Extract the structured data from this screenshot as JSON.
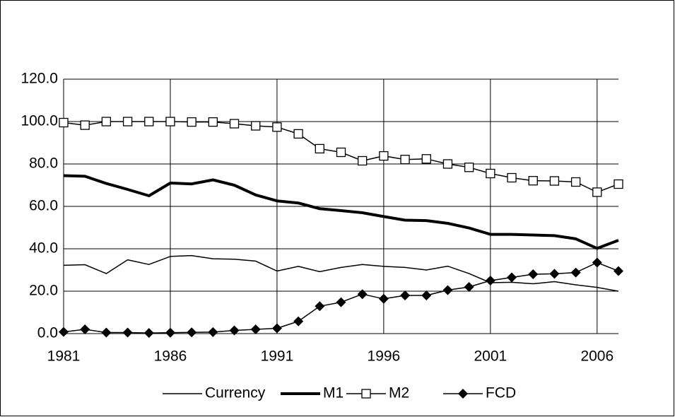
{
  "chart_data": {
    "type": "line",
    "x": [
      1981,
      1982,
      1983,
      1984,
      1985,
      1986,
      1987,
      1988,
      1989,
      1990,
      1991,
      1992,
      1993,
      1994,
      1995,
      1996,
      1997,
      1998,
      1999,
      2000,
      2001,
      2002,
      2003,
      2004,
      2005,
      2006,
      2007
    ],
    "xlim": [
      1981,
      2007
    ],
    "xticks": [
      1981,
      1986,
      1991,
      1996,
      2001,
      2006
    ],
    "ylim": [
      0,
      120
    ],
    "yticks": [
      {
        "value": 0,
        "label": "0.0"
      },
      {
        "value": 20,
        "label": "20.0"
      },
      {
        "value": 40,
        "label": "40.0"
      },
      {
        "value": 60,
        "label": "60.0"
      },
      {
        "value": 80,
        "label": "80.0"
      },
      {
        "value": 100,
        "label": "100.0"
      },
      {
        "value": 120,
        "label": "120.0"
      }
    ],
    "grid": true,
    "legend": "bottom",
    "series": [
      {
        "name": "Currency",
        "color": "#000000",
        "line_width": 1.5,
        "marker": "none",
        "values": [
          32.2,
          32.5,
          28.3,
          34.8,
          32.6,
          36.4,
          36.8,
          35.3,
          35.1,
          34.2,
          29.5,
          31.7,
          29.2,
          31.2,
          32.6,
          31.7,
          31.2,
          30,
          31.8,
          28.3,
          24,
          24.2,
          23.5,
          24.5,
          23,
          21.8,
          20
        ]
      },
      {
        "name": "M1",
        "color": "#000000",
        "line_width": 4,
        "marker": "none",
        "values": [
          74.5,
          74.2,
          70.8,
          68,
          65,
          71,
          70.6,
          72.5,
          70,
          65.4,
          62.6,
          61.6,
          58.9,
          58,
          57,
          55.2,
          53.5,
          53.3,
          52,
          49.8,
          46.8,
          46.8,
          46.5,
          46.2,
          44.7,
          40.2,
          44
        ]
      },
      {
        "name": "M2",
        "color": "#000000",
        "line_width": 1.5,
        "marker": "square-open",
        "values": [
          99.5,
          98.3,
          100,
          100,
          100,
          100,
          99.8,
          99.8,
          99,
          98,
          97.4,
          94.2,
          87.2,
          85.5,
          81.5,
          83.8,
          82.1,
          82.4,
          80,
          78.4,
          75.5,
          73.5,
          72.1,
          72,
          71.5,
          66.7,
          70.5
        ]
      },
      {
        "name": "FCD",
        "color": "#000000",
        "line_width": 1.5,
        "marker": "diamond",
        "values": [
          0.8,
          2,
          0.5,
          0.5,
          0.3,
          0.4,
          0.6,
          0.7,
          1.5,
          2,
          2.5,
          5.8,
          12.9,
          14.8,
          18.6,
          16.4,
          18,
          18,
          20.5,
          22,
          25,
          26.5,
          28,
          28.2,
          28.8,
          33.5,
          29.5
        ]
      }
    ]
  }
}
